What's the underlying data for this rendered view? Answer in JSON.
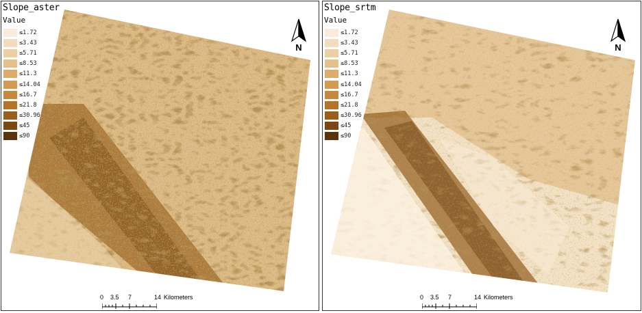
{
  "legend_colors": [
    "#f8ebdc",
    "#f2dcbd",
    "#ecd0a4",
    "#e5c08a",
    "#ddac6d",
    "#d39a52",
    "#c8883c",
    "#b5732a",
    "#9b5f1c",
    "#7a4812",
    "#5a330a"
  ],
  "panels": [
    {
      "title": "Slope_aster",
      "legend_heading": "Value",
      "legend": [
        "≤1.72",
        "≤3.43",
        "≤5.71",
        "≤8.53",
        "≤11.3",
        "≤14.04",
        "≤16.7",
        "≤21.8",
        "≤30.96",
        "≤45",
        "≤90"
      ],
      "north_label": "N",
      "scale": {
        "ticks": [
          "0",
          "3.5",
          "7",
          "14"
        ],
        "unit": "Kilometers"
      },
      "raster_base": "#d5ab6c"
    },
    {
      "title": "Slope_srtm",
      "legend_heading": "Value",
      "legend": [
        "≤1.72",
        "≤3.43",
        "≤5.71",
        "≤8.53",
        "≤11.3",
        "≤14.04",
        "≤16.7",
        "≤21.8",
        "≤30.96",
        "≤45",
        "≤90"
      ],
      "north_label": "N",
      "scale": {
        "ticks": [
          "0",
          "3.5",
          "7",
          "14"
        ],
        "unit": "Kilometers"
      },
      "raster_base": "#e4c592"
    }
  ]
}
